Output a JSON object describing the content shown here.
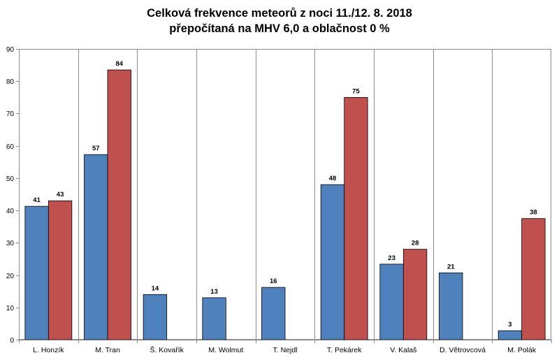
{
  "chart_data": {
    "type": "bar",
    "title": "Celková frekvence meteorů z noci 11./12. 8. 2018",
    "subtitle": "přepočítaná na MHV 6,0 a oblačnost 0 %",
    "xlabel": "",
    "ylabel": "",
    "ylim": [
      0,
      90
    ],
    "yticks": [
      0,
      10,
      20,
      30,
      40,
      50,
      60,
      70,
      80,
      90
    ],
    "grid": "vertical-category-separators",
    "categories": [
      "L. Honzík",
      "M. Tran",
      "Š. Kovařík",
      "M. Wolmut",
      "T. Nejdl",
      "T. Pekárek",
      "V. Kalaš",
      "D. Větrovcová",
      "M. Polák"
    ],
    "series": [
      {
        "name": "series-1",
        "color": "#4f81bd",
        "values": [
          41.3,
          57.3,
          14.0,
          13.0,
          16.2,
          48.0,
          23.4,
          20.7,
          2.8
        ],
        "labels": [
          "41",
          "57",
          "14",
          "13",
          "16",
          "48",
          "23",
          "21",
          "3"
        ]
      },
      {
        "name": "series-2",
        "color": "#c0504d",
        "values": [
          43.0,
          83.5,
          null,
          null,
          null,
          75.0,
          28.0,
          null,
          37.5
        ],
        "labels": [
          "43",
          "84",
          null,
          null,
          null,
          "75",
          "28",
          null,
          "38"
        ]
      }
    ]
  }
}
